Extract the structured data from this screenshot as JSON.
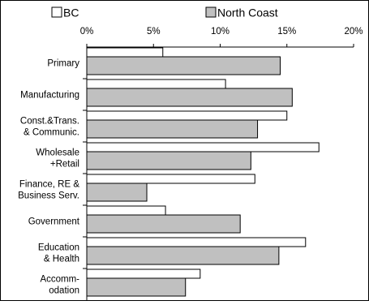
{
  "chart_data": {
    "type": "bar",
    "orientation": "horizontal",
    "categories": [
      "Primary",
      "Manufacturing",
      "Const.&Trans.\n& Communic.",
      "Wholesale\n+Retail",
      "Finance, RE &\nBusiness Serv.",
      "Government",
      "Education\n& Health",
      "Accomm-\nodation"
    ],
    "series": [
      {
        "name": "BC",
        "color": "#ffffff",
        "values": [
          5.7,
          10.4,
          15.0,
          17.4,
          12.6,
          5.9,
          16.4,
          8.5
        ]
      },
      {
        "name": "North Coast",
        "color": "#c0c0c0",
        "values": [
          14.5,
          15.4,
          12.8,
          12.3,
          4.5,
          11.5,
          14.4,
          7.4
        ]
      }
    ],
    "xlim": [
      0,
      20
    ],
    "x_ticks": [
      "0%",
      "5%",
      "10%",
      "15%",
      "20%"
    ],
    "x_axis_position": "top",
    "legend_position": "top",
    "grid": false,
    "title": "",
    "xlabel": "",
    "ylabel": ""
  }
}
